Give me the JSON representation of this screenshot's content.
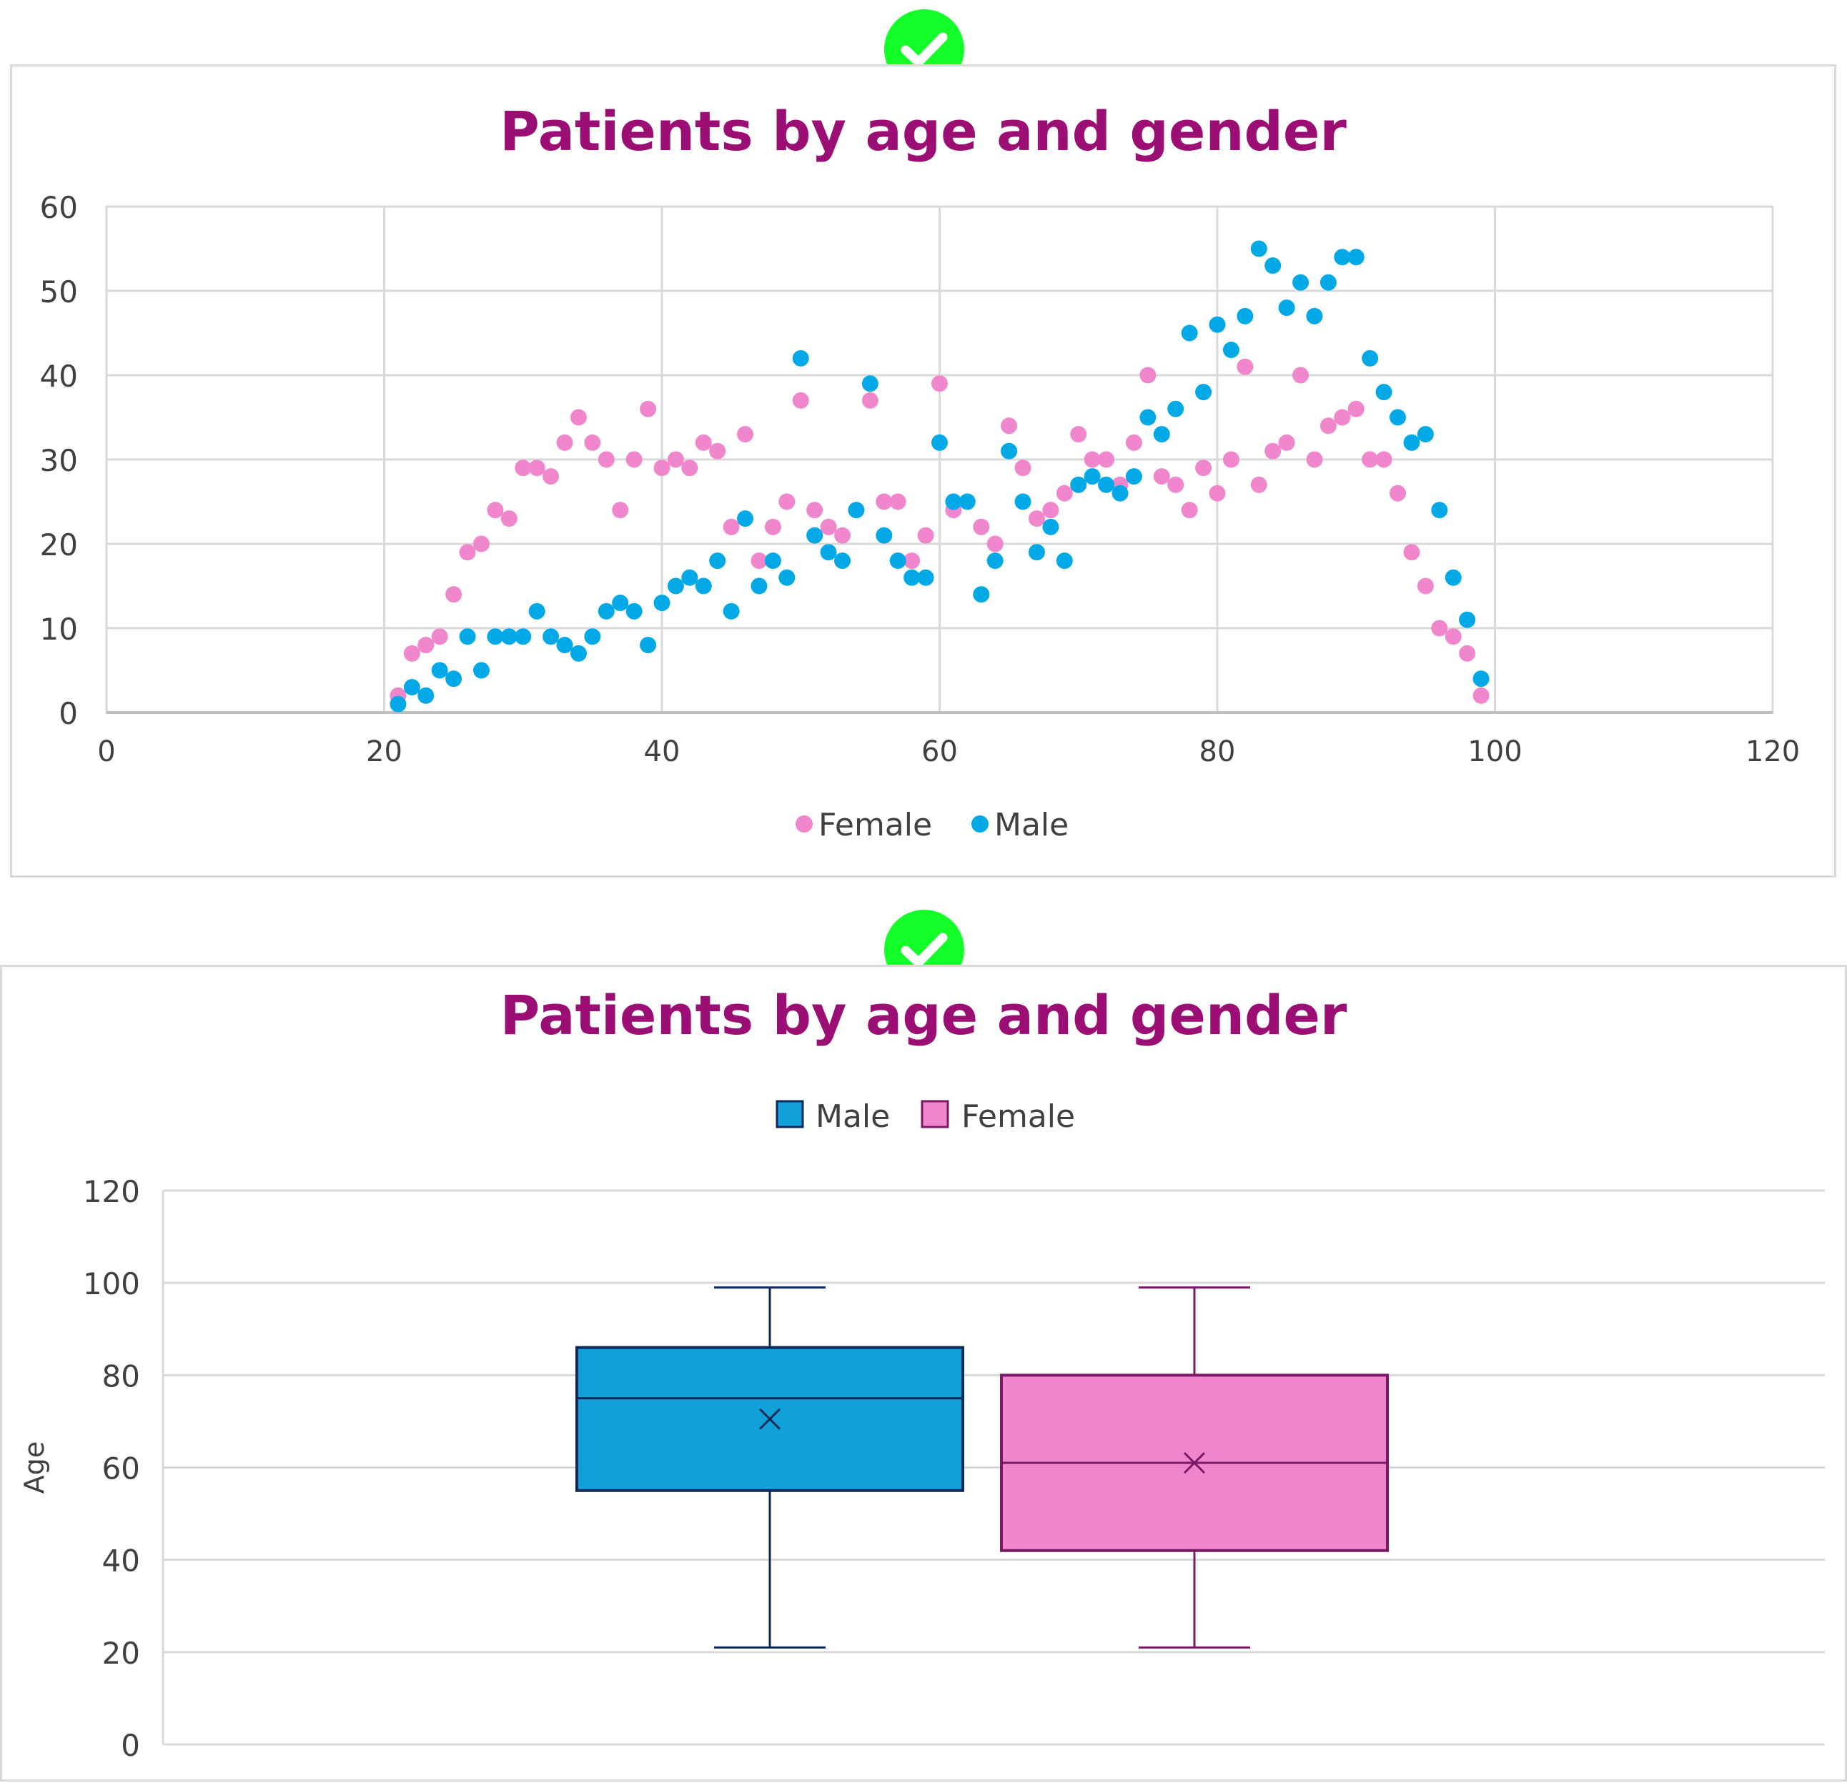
{
  "colors": {
    "female": "#f087cc",
    "male": "#03a9e7",
    "title": "#9b0e74",
    "check": "#14ff2a",
    "male_box_fill": "#11a0d8",
    "male_box_stroke": "#0f2a5a",
    "female_box_fill": "#f087cc",
    "female_box_stroke": "#7a1a66"
  },
  "icons": {
    "check1": "check-circle-icon",
    "check2": "check-circle-icon"
  },
  "chart_data": [
    {
      "type": "scatter",
      "title": "Patients by age and gender",
      "xlim": [
        0,
        120
      ],
      "ylim": [
        0,
        60
      ],
      "x_ticks": [
        "0",
        "20",
        "40",
        "60",
        "80",
        "100",
        "120"
      ],
      "y_ticks": [
        "0",
        "10",
        "20",
        "30",
        "40",
        "50",
        "60"
      ],
      "grid": true,
      "legend_position": "bottom",
      "series": [
        {
          "name": "Female",
          "points": [
            [
              21,
              2
            ],
            [
              22,
              7
            ],
            [
              23,
              8
            ],
            [
              24,
              9
            ],
            [
              25,
              14
            ],
            [
              26,
              19
            ],
            [
              27,
              20
            ],
            [
              28,
              24
            ],
            [
              29,
              23
            ],
            [
              30,
              29
            ],
            [
              31,
              29
            ],
            [
              32,
              28
            ],
            [
              33,
              32
            ],
            [
              34,
              35
            ],
            [
              35,
              32
            ],
            [
              36,
              30
            ],
            [
              37,
              24
            ],
            [
              38,
              30
            ],
            [
              39,
              36
            ],
            [
              40,
              29
            ],
            [
              41,
              30
            ],
            [
              42,
              29
            ],
            [
              43,
              32
            ],
            [
              44,
              31
            ],
            [
              45,
              22
            ],
            [
              46,
              33
            ],
            [
              47,
              18
            ],
            [
              48,
              22
            ],
            [
              49,
              25
            ],
            [
              50,
              37
            ],
            [
              51,
              24
            ],
            [
              52,
              22
            ],
            [
              53,
              21
            ],
            [
              55,
              37
            ],
            [
              56,
              25
            ],
            [
              57,
              25
            ],
            [
              58,
              18
            ],
            [
              59,
              21
            ],
            [
              60,
              39
            ],
            [
              61,
              24
            ],
            [
              63,
              22
            ],
            [
              64,
              20
            ],
            [
              65,
              34
            ],
            [
              66,
              29
            ],
            [
              67,
              23
            ],
            [
              68,
              24
            ],
            [
              69,
              26
            ],
            [
              70,
              33
            ],
            [
              71,
              30
            ],
            [
              72,
              30
            ],
            [
              73,
              27
            ],
            [
              74,
              32
            ],
            [
              75,
              40
            ],
            [
              76,
              28
            ],
            [
              77,
              27
            ],
            [
              78,
              24
            ],
            [
              79,
              29
            ],
            [
              80,
              26
            ],
            [
              81,
              30
            ],
            [
              82,
              41
            ],
            [
              83,
              27
            ],
            [
              84,
              31
            ],
            [
              85,
              32
            ],
            [
              86,
              40
            ],
            [
              87,
              30
            ],
            [
              88,
              34
            ],
            [
              89,
              35
            ],
            [
              90,
              36
            ],
            [
              91,
              30
            ],
            [
              92,
              30
            ],
            [
              93,
              26
            ],
            [
              94,
              19
            ],
            [
              95,
              15
            ],
            [
              96,
              10
            ],
            [
              97,
              9
            ],
            [
              98,
              7
            ],
            [
              99,
              2
            ]
          ]
        },
        {
          "name": "Male",
          "points": [
            [
              21,
              1
            ],
            [
              22,
              3
            ],
            [
              23,
              2
            ],
            [
              24,
              5
            ],
            [
              25,
              4
            ],
            [
              26,
              9
            ],
            [
              27,
              5
            ],
            [
              28,
              9
            ],
            [
              29,
              9
            ],
            [
              30,
              9
            ],
            [
              31,
              12
            ],
            [
              32,
              9
            ],
            [
              33,
              8
            ],
            [
              34,
              7
            ],
            [
              35,
              9
            ],
            [
              36,
              12
            ],
            [
              37,
              13
            ],
            [
              38,
              12
            ],
            [
              39,
              8
            ],
            [
              40,
              13
            ],
            [
              41,
              15
            ],
            [
              42,
              16
            ],
            [
              43,
              15
            ],
            [
              44,
              18
            ],
            [
              45,
              12
            ],
            [
              46,
              23
            ],
            [
              47,
              15
            ],
            [
              48,
              18
            ],
            [
              49,
              16
            ],
            [
              50,
              42
            ],
            [
              51,
              21
            ],
            [
              52,
              19
            ],
            [
              53,
              18
            ],
            [
              54,
              24
            ],
            [
              55,
              39
            ],
            [
              56,
              21
            ],
            [
              57,
              18
            ],
            [
              58,
              16
            ],
            [
              59,
              16
            ],
            [
              60,
              32
            ],
            [
              61,
              25
            ],
            [
              62,
              25
            ],
            [
              63,
              14
            ],
            [
              64,
              18
            ],
            [
              65,
              31
            ],
            [
              66,
              25
            ],
            [
              67,
              19
            ],
            [
              68,
              22
            ],
            [
              69,
              18
            ],
            [
              70,
              27
            ],
            [
              71,
              28
            ],
            [
              72,
              27
            ],
            [
              73,
              26
            ],
            [
              74,
              28
            ],
            [
              75,
              35
            ],
            [
              76,
              33
            ],
            [
              77,
              36
            ],
            [
              78,
              45
            ],
            [
              79,
              38
            ],
            [
              80,
              46
            ],
            [
              81,
              43
            ],
            [
              82,
              47
            ],
            [
              83,
              55
            ],
            [
              84,
              53
            ],
            [
              85,
              48
            ],
            [
              86,
              51
            ],
            [
              87,
              47
            ],
            [
              88,
              51
            ],
            [
              89,
              54
            ],
            [
              90,
              54
            ],
            [
              91,
              42
            ],
            [
              92,
              38
            ],
            [
              93,
              35
            ],
            [
              94,
              32
            ],
            [
              95,
              33
            ],
            [
              96,
              24
            ],
            [
              97,
              16
            ],
            [
              98,
              11
            ],
            [
              99,
              4
            ]
          ]
        }
      ]
    },
    {
      "type": "box",
      "title": "Patients by age and gender",
      "ylabel": "Age",
      "ylim": [
        0,
        120
      ],
      "y_ticks": [
        "0",
        "20",
        "40",
        "60",
        "80",
        "100",
        "120"
      ],
      "grid": true,
      "legend_position": "top",
      "series": [
        {
          "name": "Male",
          "min": 21,
          "q1": 55,
          "median": 75,
          "q3": 86,
          "max": 99,
          "mean": 70.5
        },
        {
          "name": "Female",
          "min": 21,
          "q1": 42,
          "median": 61,
          "q3": 80,
          "max": 99,
          "mean": 61
        }
      ]
    }
  ]
}
